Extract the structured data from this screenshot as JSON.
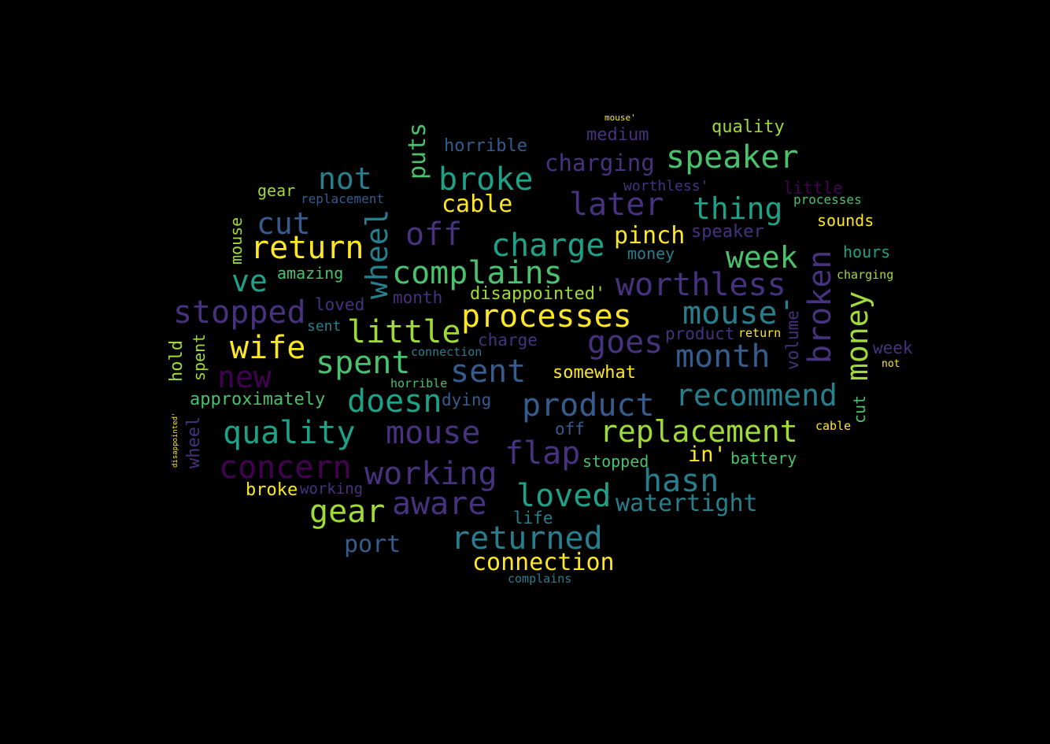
{
  "palette": [
    "#440154",
    "#46327e",
    "#365c8d",
    "#277f8e",
    "#1fa187",
    "#4ac16d",
    "#a0da39",
    "#fde725"
  ],
  "words": [
    {
      "text": "speaker",
      "color": "#4ac16d"
    },
    {
      "text": "quality",
      "color": "#a0da39"
    },
    {
      "text": "charging",
      "color": "#46327e"
    },
    {
      "text": "medium",
      "color": "#46327e"
    },
    {
      "text": "horrible",
      "color": "#365c8d"
    },
    {
      "text": "not",
      "color": "#277f8e"
    },
    {
      "text": "broke",
      "color": "#1fa187"
    },
    {
      "text": "later",
      "color": "#46327e"
    },
    {
      "text": "thing",
      "color": "#1fa187"
    },
    {
      "text": "worthless'",
      "color": "#46327e"
    },
    {
      "text": "little",
      "color": "#440154"
    },
    {
      "text": "processes",
      "color": "#4ac16d"
    },
    {
      "text": "cable",
      "color": "#fde725"
    },
    {
      "text": "puts",
      "color": "#4ac16d"
    },
    {
      "text": "gear",
      "color": "#a0da39"
    },
    {
      "text": "replacement",
      "color": "#365c8d"
    },
    {
      "text": "cut",
      "color": "#365c8d"
    },
    {
      "text": "return",
      "color": "#fde725"
    },
    {
      "text": "off",
      "color": "#46327e"
    },
    {
      "text": "charge",
      "color": "#1fa187"
    },
    {
      "text": "pinch",
      "color": "#fde725"
    },
    {
      "text": "speaker",
      "color": "#46327e"
    },
    {
      "text": "week",
      "color": "#4ac16d"
    },
    {
      "text": "sounds",
      "color": "#fde725"
    },
    {
      "text": "hours",
      "color": "#1fa187"
    },
    {
      "text": "wheel",
      "color": "#277f8e"
    },
    {
      "text": "complains",
      "color": "#4ac16d"
    },
    {
      "text": "ve",
      "color": "#1fa187"
    },
    {
      "text": "amazing",
      "color": "#4ac16d"
    },
    {
      "text": "mouse",
      "color": "#a0da39"
    },
    {
      "text": "money",
      "color": "#277f8e"
    },
    {
      "text": "worthless",
      "color": "#46327e"
    },
    {
      "text": "broken",
      "color": "#46327e"
    },
    {
      "text": "mouse'",
      "color": "#277f8e"
    },
    {
      "text": "money",
      "color": "#a0da39"
    },
    {
      "text": "charging",
      "color": "#a0da39"
    },
    {
      "text": "stopped",
      "color": "#46327e"
    },
    {
      "text": "loved",
      "color": "#46327e"
    },
    {
      "text": "month",
      "color": "#46327e"
    },
    {
      "text": "disappointed'",
      "color": "#a0da39"
    },
    {
      "text": "processes",
      "color": "#fde725"
    },
    {
      "text": "wife",
      "color": "#fde725"
    },
    {
      "text": "little",
      "color": "#a0da39"
    },
    {
      "text": "goes",
      "color": "#46327e"
    },
    {
      "text": "month",
      "color": "#365c8d"
    },
    {
      "text": "volume",
      "color": "#46327e"
    },
    {
      "text": "hold",
      "color": "#a0da39"
    },
    {
      "text": "spent",
      "color": "#a0da39"
    },
    {
      "text": "sent",
      "color": "#277f8e"
    },
    {
      "text": "charge",
      "color": "#46327e"
    },
    {
      "text": "product",
      "color": "#46327e"
    },
    {
      "text": "return",
      "color": "#fde725"
    },
    {
      "text": "week",
      "color": "#46327e"
    },
    {
      "text": "new",
      "color": "#440154"
    },
    {
      "text": "spent",
      "color": "#4ac16d"
    },
    {
      "text": "sent",
      "color": "#365c8d"
    },
    {
      "text": "somewhat",
      "color": "#fde725"
    },
    {
      "text": "recommend",
      "color": "#277f8e"
    },
    {
      "text": "approximately",
      "color": "#4ac16d"
    },
    {
      "text": "doesn",
      "color": "#1fa187"
    },
    {
      "text": "dying",
      "color": "#365c8d"
    },
    {
      "text": "product",
      "color": "#365c8d"
    },
    {
      "text": "cut",
      "color": "#4ac16d"
    },
    {
      "text": "quality",
      "color": "#1fa187"
    },
    {
      "text": "mouse",
      "color": "#46327e"
    },
    {
      "text": "off",
      "color": "#365c8d"
    },
    {
      "text": "replacement",
      "color": "#a0da39"
    },
    {
      "text": "cable",
      "color": "#fde725"
    },
    {
      "text": "wheel",
      "color": "#46327e"
    },
    {
      "text": "concern",
      "color": "#440154"
    },
    {
      "text": "flap",
      "color": "#46327e"
    },
    {
      "text": "in'",
      "color": "#fde725"
    },
    {
      "text": "battery",
      "color": "#4ac16d"
    },
    {
      "text": "stopped",
      "color": "#4ac16d"
    },
    {
      "text": "working",
      "color": "#46327e"
    },
    {
      "text": "hasn",
      "color": "#277f8e"
    },
    {
      "text": "broke",
      "color": "#fde725"
    },
    {
      "text": "working",
      "color": "#46327e"
    },
    {
      "text": "aware",
      "color": "#46327e"
    },
    {
      "text": "loved",
      "color": "#1fa187"
    },
    {
      "text": "watertight",
      "color": "#277f8e"
    },
    {
      "text": "gear",
      "color": "#a0da39"
    },
    {
      "text": "life",
      "color": "#277f8e"
    },
    {
      "text": "returned",
      "color": "#277f8e"
    },
    {
      "text": "port",
      "color": "#365c8d"
    },
    {
      "text": "connection",
      "color": "#fde725"
    },
    {
      "text": "complains",
      "color": "#277f8e"
    },
    {
      "text": "horrible",
      "color": "#4ac16d"
    },
    {
      "text": "connection",
      "color": "#277f8e"
    },
    {
      "text": "mouse'",
      "color": "#fde725"
    },
    {
      "text": "not",
      "color": "#fde725"
    },
    {
      "text": "disappointed'",
      "color": "#fde725"
    }
  ]
}
